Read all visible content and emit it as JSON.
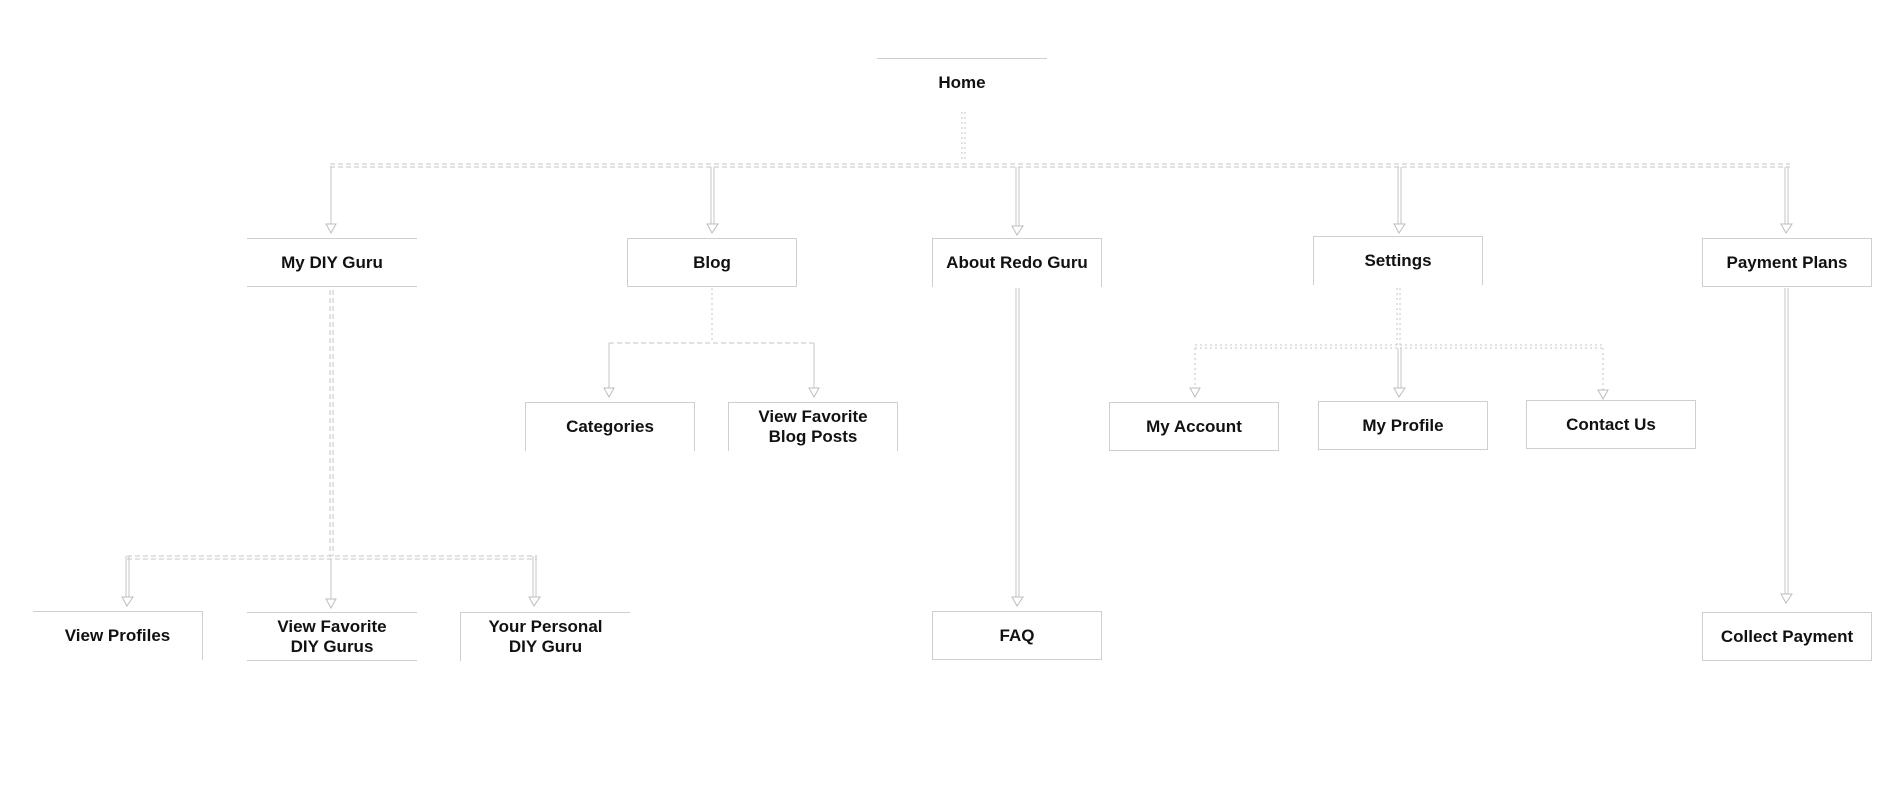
{
  "nodes": {
    "home": "Home",
    "my_diy_guru": "My DIY Guru",
    "blog": "Blog",
    "about": "About Redo Guru",
    "settings": "Settings",
    "payment_plans": "Payment Plans",
    "categories": "Categories",
    "view_fav_blog_posts": "View Favorite\nBlog Posts",
    "my_account": "My Account",
    "my_profile": "My Profile",
    "contact_us": "Contact Us",
    "view_profiles": "View Profiles",
    "view_fav_gurus": "View Favorite\nDIY Gurus",
    "your_personal_guru": "Your Personal\nDIY Guru",
    "faq": "FAQ",
    "collect_payment": "Collect Payment"
  }
}
